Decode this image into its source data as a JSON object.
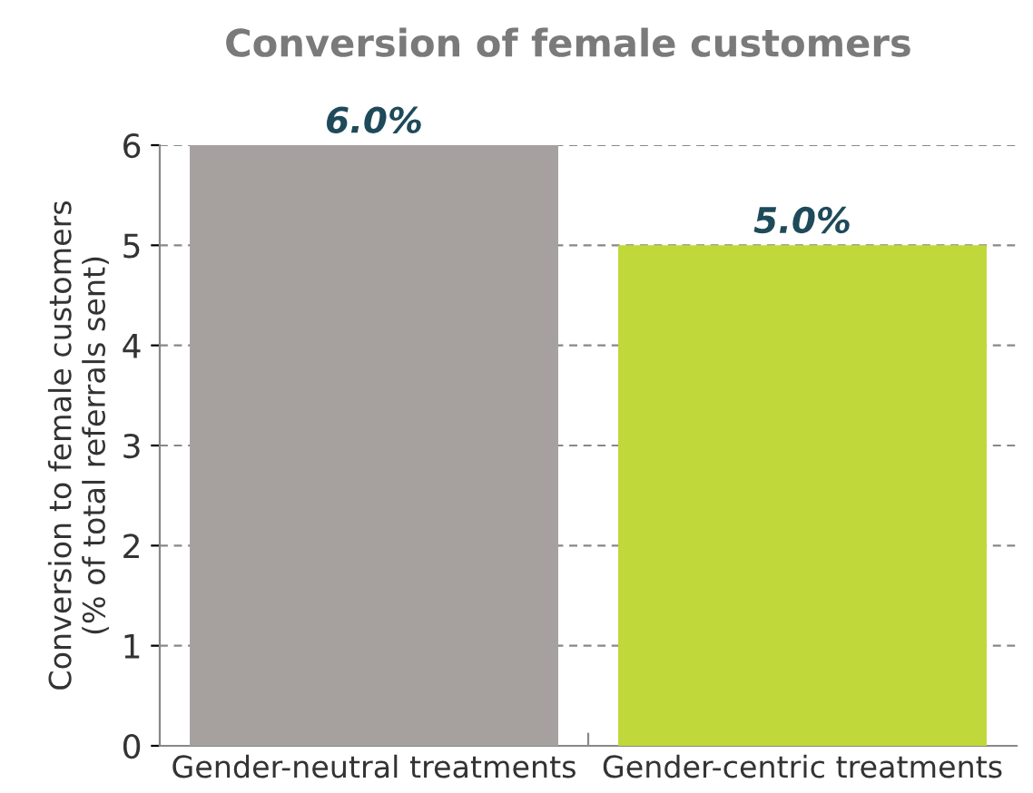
{
  "chart_data": {
    "type": "bar",
    "title": "Conversion of female customers",
    "ylabel": "Conversion to female customers\n(% of total referrals sent)",
    "categories": [
      "Gender-neutral treatments",
      "Gender-centric treatments"
    ],
    "values": [
      6.0,
      5.0
    ],
    "colors": [
      "#a6a19f",
      "#c1d83a"
    ],
    "value_labels": [
      "6.0%",
      "5.0%"
    ],
    "ylim": [
      0,
      6
    ],
    "yticks": [
      0,
      1,
      2,
      3,
      4,
      5,
      6
    ],
    "grid": "y"
  }
}
